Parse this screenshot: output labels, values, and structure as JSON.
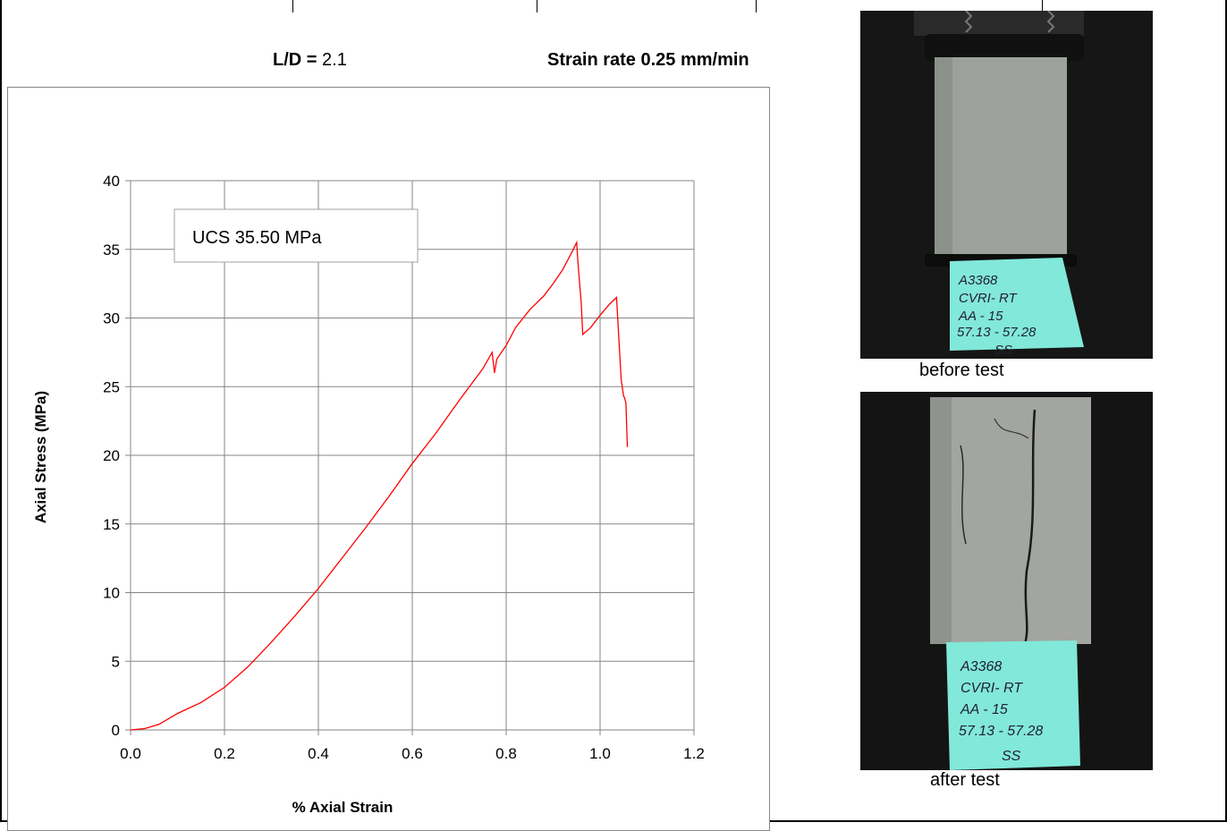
{
  "header": {
    "ld_label": "L/D =",
    "ld_value": "2.1",
    "strain_rate": "Strain rate 0.25 mm/min"
  },
  "photos": {
    "before_caption": "before test",
    "after_caption": "after test",
    "label_lines": [
      "A3368",
      "CVRI- RT",
      "AA - 15",
      "57.13 - 57.28",
      "SS"
    ]
  },
  "chart_data": {
    "type": "line",
    "title": "",
    "xlabel": "% Axial Strain",
    "ylabel": "Axial Stress (MPa)",
    "xlim": [
      0,
      1.2
    ],
    "ylim": [
      0,
      40
    ],
    "xticks": [
      "0.0",
      "0.2",
      "0.4",
      "0.6",
      "0.8",
      "1.0",
      "1.2"
    ],
    "yticks": [
      "0",
      "5",
      "10",
      "15",
      "20",
      "25",
      "30",
      "35",
      "40"
    ],
    "grid": true,
    "annotation": "UCS 35.50 MPa",
    "series": [
      {
        "color": "#ff0000",
        "x": [
          0.0,
          0.03,
          0.06,
          0.1,
          0.15,
          0.2,
          0.25,
          0.3,
          0.35,
          0.4,
          0.45,
          0.5,
          0.55,
          0.6,
          0.65,
          0.7,
          0.75,
          0.77,
          0.775,
          0.78,
          0.8,
          0.82,
          0.85,
          0.88,
          0.9,
          0.92,
          0.94,
          0.95,
          0.953,
          0.96,
          0.963,
          0.98,
          1.0,
          1.02,
          1.035,
          1.04,
          1.045,
          1.05,
          1.052,
          1.055,
          1.058
        ],
        "y": [
          0.0,
          0.1,
          0.4,
          1.2,
          2.0,
          3.1,
          4.6,
          6.4,
          8.3,
          10.3,
          12.5,
          14.7,
          17.0,
          19.4,
          21.6,
          24.0,
          26.3,
          27.5,
          26.0,
          27.0,
          28.0,
          29.3,
          30.6,
          31.6,
          32.5,
          33.5,
          34.8,
          35.5,
          34.0,
          31.0,
          28.8,
          29.3,
          30.2,
          31.0,
          31.5,
          28.5,
          25.5,
          24.3,
          24.2,
          23.8,
          20.6
        ]
      }
    ]
  },
  "colors": {
    "line": "#ff0000",
    "grid": "#868686",
    "photo_bg": "#1a1a1a",
    "core": "#9a9e9a",
    "label_card": "#7fe6d8"
  }
}
